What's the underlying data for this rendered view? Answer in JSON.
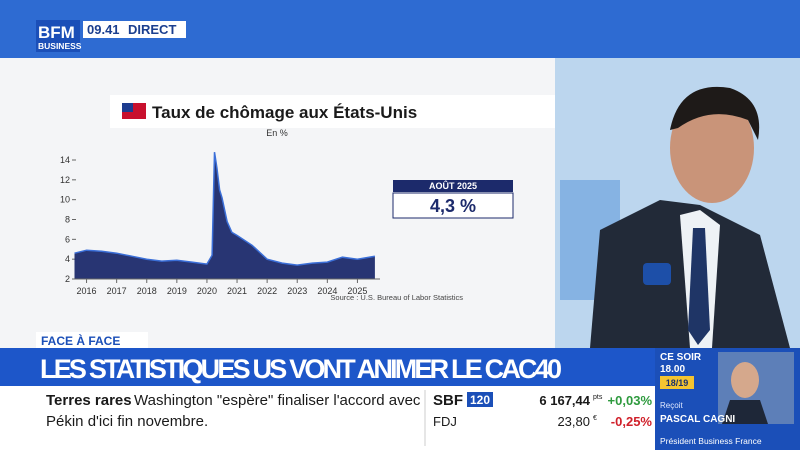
{
  "header": {
    "logo_top": "BFM",
    "logo_bottom": "BUSINESS",
    "time": "09.41",
    "status": "DIRECT"
  },
  "chart": {
    "type": "area",
    "title": "Taux de chômage aux États-Unis",
    "subtitle": "En %",
    "source": "Source : U.S. Bureau of Labor Statistics",
    "color": "#1c2a6b",
    "x": [
      2015.6,
      2016,
      2016.5,
      2017,
      2017.5,
      2018,
      2018.5,
      2019,
      2019.5,
      2020,
      2020.17,
      2020.25,
      2020.33,
      2020.42,
      2020.5,
      2020.67,
      2020.83,
      2021,
      2021.5,
      2022,
      2022.5,
      2023,
      2023.5,
      2024,
      2024.5,
      2025,
      2025.58
    ],
    "values": [
      4.6,
      4.9,
      4.8,
      4.6,
      4.3,
      4.0,
      3.8,
      3.9,
      3.7,
      3.5,
      4.4,
      14.8,
      13.2,
      11.0,
      10.2,
      7.8,
      6.7,
      6.4,
      5.4,
      4.0,
      3.6,
      3.4,
      3.6,
      3.7,
      4.2,
      4.0,
      4.3
    ],
    "xlim": [
      2015.45,
      2025.75
    ],
    "xticks": [
      2016,
      2017,
      2018,
      2019,
      2020,
      2021,
      2022,
      2023,
      2024,
      2025
    ],
    "ylim": [
      2,
      14
    ],
    "yticks": [
      2,
      4,
      6,
      8,
      10,
      12,
      14
    ],
    "callout": {
      "label": "AOÛT 2025",
      "value": "4,3 %"
    }
  },
  "banner": {
    "tag": "FACE À FACE",
    "headline": "LES STATISTIQUES US VONT ANIMER LE CAC40"
  },
  "ticker": {
    "topic": "Terres rares",
    "lines": [
      "Washington \"espère\" finaliser l'accord avec",
      "Pékin d'ici fin novembre."
    ]
  },
  "markets": [
    {
      "name": "SBF",
      "badge": "120",
      "value": "6 167,44",
      "unit": "pts",
      "change": "+0,03%"
    },
    {
      "name": "FDJ",
      "value": "23,80",
      "unit": "€",
      "change": "-0,25%"
    }
  ],
  "promo": {
    "when": "CE SOIR",
    "time": "18.00",
    "slot": "18/19",
    "intro": "Reçoit",
    "guest": "PASCAL CAGNI",
    "role": "Président Business France"
  }
}
